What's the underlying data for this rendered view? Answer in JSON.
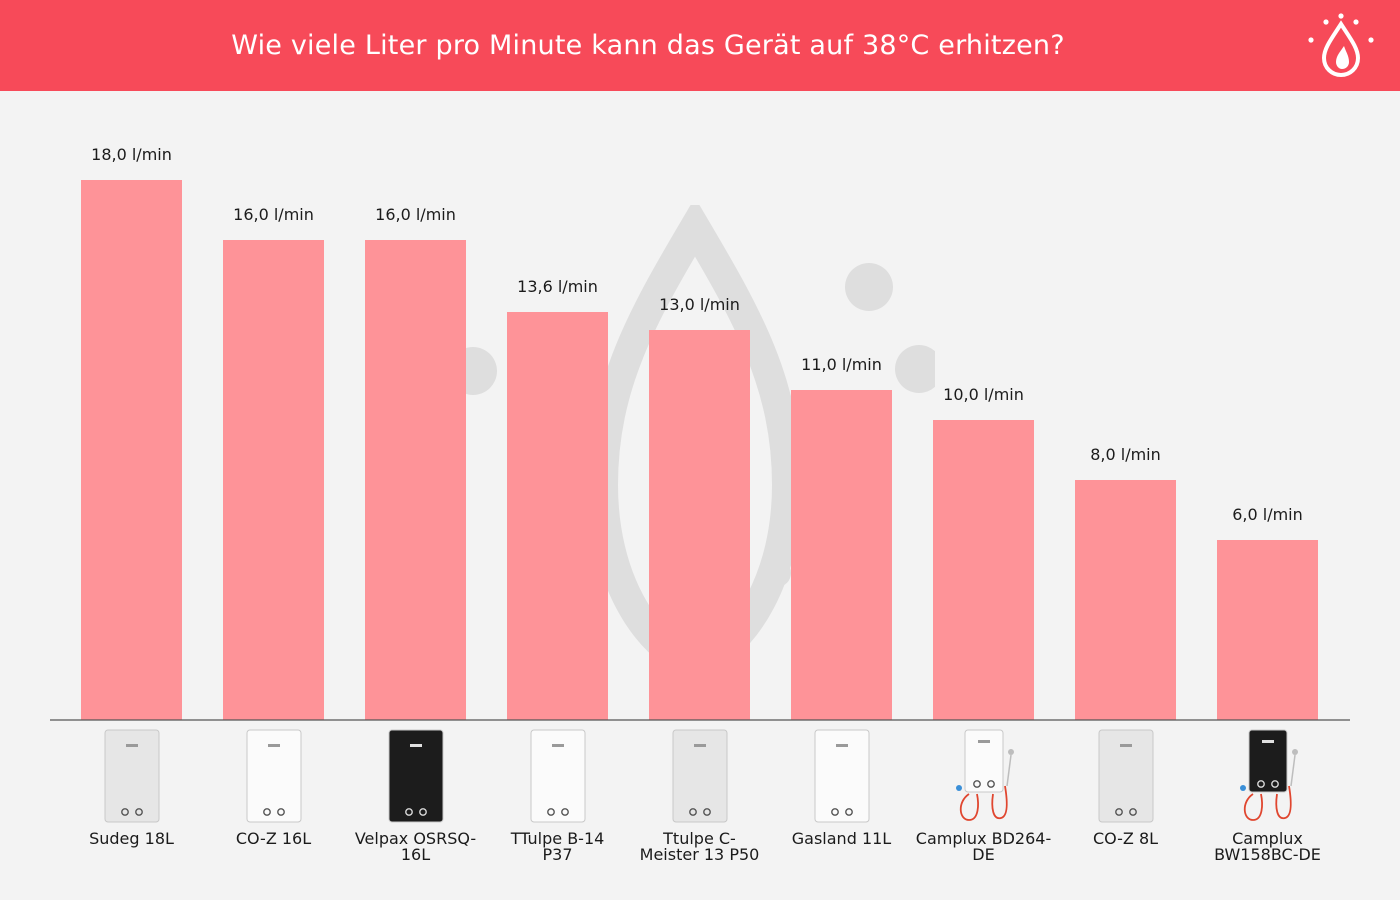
{
  "header": {
    "title": "Wie viele Liter pro Minute kann das Gerät auf 38°C erhitzen?",
    "logo_icon": "flame-drop-icon"
  },
  "colors": {
    "header_bg": "#f74a59",
    "bar": "#fe9398",
    "background": "#f3f3f3",
    "watermark": "#dedede",
    "axis": "#555555"
  },
  "chart_data": {
    "type": "bar",
    "title": "Wie viele Liter pro Minute kann das Gerät auf 38°C erhitzen?",
    "xlabel": "",
    "ylabel": "",
    "unit": "l/min",
    "ylim": [
      0,
      18
    ],
    "grid": false,
    "legend": "none",
    "categories": [
      [
        "Sudeg 18L"
      ],
      [
        "CO-Z 16L"
      ],
      [
        "Velpax OSRSQ-",
        "16L"
      ],
      [
        "TTulpe B-14",
        "P37"
      ],
      [
        "Ttulpe C-",
        "Meister 13 P50"
      ],
      [
        "Gasland 11L"
      ],
      [
        "Camplux BD264-",
        "DE"
      ],
      [
        "CO-Z 8L"
      ],
      [
        "Camplux",
        "BW158BC-DE"
      ]
    ],
    "values": [
      18.0,
      16.0,
      16.0,
      13.6,
      13.0,
      11.0,
      10.0,
      8.0,
      6.0
    ],
    "value_labels": [
      "18,0 l/min",
      "16,0 l/min",
      "16,0 l/min",
      "13,6 l/min",
      "13,0 l/min",
      "11,0 l/min",
      "10,0 l/min",
      "8,0 l/min",
      "6,0 l/min"
    ],
    "product_images": [
      {
        "icon": "gas-water-heater-silver-icon",
        "style": "silver"
      },
      {
        "icon": "gas-water-heater-white-icon",
        "style": "white"
      },
      {
        "icon": "gas-water-heater-black-icon",
        "style": "black"
      },
      {
        "icon": "gas-water-heater-white-icon",
        "style": "white"
      },
      {
        "icon": "gas-water-heater-silver-icon",
        "style": "silver"
      },
      {
        "icon": "gas-water-heater-white-icon",
        "style": "white"
      },
      {
        "icon": "gas-water-heater-hoses-white-icon",
        "style": "white-hoses"
      },
      {
        "icon": "gas-water-heater-silver-icon",
        "style": "silver"
      },
      {
        "icon": "gas-water-heater-hoses-black-icon",
        "style": "black-hoses"
      }
    ]
  }
}
